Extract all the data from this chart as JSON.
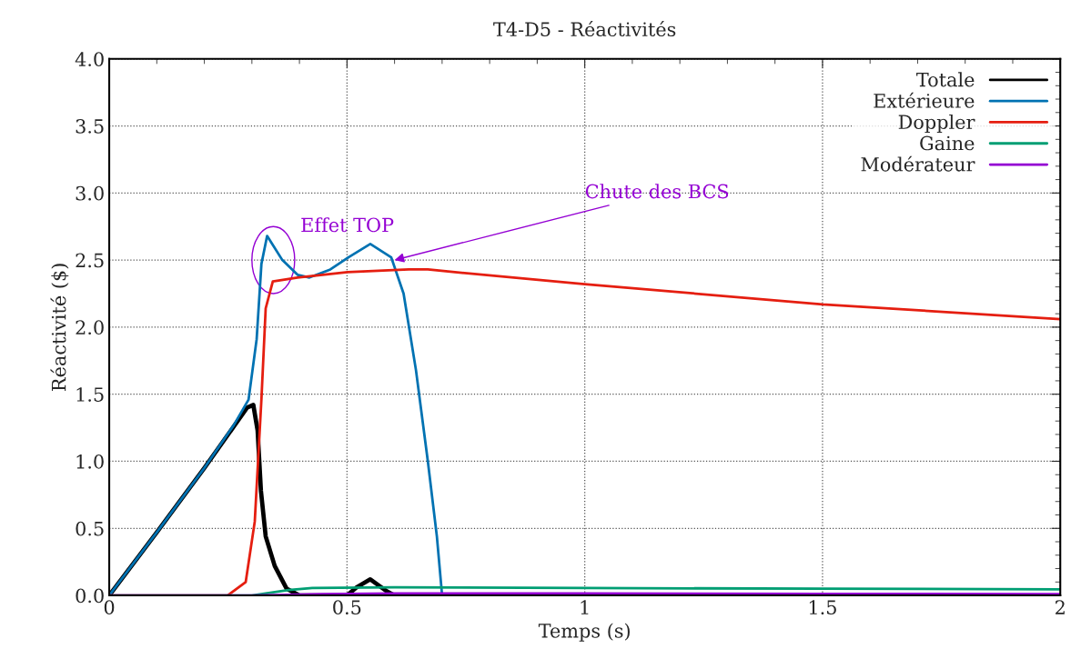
{
  "chart_data": {
    "type": "line",
    "title": "T4-D5 - Réactivités",
    "xlabel": "Temps (s)",
    "ylabel": "Réactivité ($)",
    "xlim": [
      0,
      2
    ],
    "xticks": [
      0,
      0.5,
      1,
      1.5,
      2
    ],
    "ylim": [
      0,
      4
    ],
    "yticks": [
      {
        "value": 0,
        "label": "0.0"
      },
      {
        "value": 0.5,
        "label": "0.5"
      },
      {
        "value": 1,
        "label": "1.0"
      },
      {
        "value": 1.5,
        "label": "1.5"
      },
      {
        "value": 2,
        "label": "2.0"
      },
      {
        "value": 2.5,
        "label": "2.5"
      },
      {
        "value": 3,
        "label": "3.0"
      },
      {
        "value": 3.5,
        "label": "3.5"
      },
      {
        "value": 4,
        "label": "4.0"
      }
    ],
    "grid": true,
    "legend": "top right",
    "line_style": "solid",
    "marker": "none",
    "series": [
      {
        "name": "Totale",
        "color": "#000000",
        "x": [
          0,
          0.1,
          0.2,
          0.262,
          0.29,
          0.303,
          0.312,
          0.319,
          0.329,
          0.348,
          0.373,
          0.4,
          0.5,
          0.52,
          0.549,
          0.584,
          0.6
        ],
        "values": [
          0,
          0.47,
          0.95,
          1.26,
          1.4,
          1.42,
          1.23,
          0.78,
          0.44,
          0.22,
          0.05,
          0,
          0,
          0.06,
          0.12,
          0.03,
          0
        ]
      },
      {
        "name": "Extérieure",
        "color": "#0072b2",
        "x": [
          0,
          0.1,
          0.2,
          0.262,
          0.293,
          0.31,
          0.32,
          0.332,
          0.364,
          0.396,
          0.421,
          0.465,
          0.503,
          0.549,
          0.593,
          0.619,
          0.645,
          0.67,
          0.689,
          0.7
        ],
        "values": [
          0,
          0.47,
          0.95,
          1.27,
          1.46,
          1.91,
          2.47,
          2.68,
          2.5,
          2.39,
          2.37,
          2.43,
          2.52,
          2.62,
          2.52,
          2.25,
          1.68,
          1.0,
          0.44,
          0
        ]
      },
      {
        "name": "Doppler",
        "color": "#e51e10",
        "x": [
          0,
          0.249,
          0.287,
          0.306,
          0.32,
          0.329,
          0.344,
          0.396,
          0.501,
          0.63,
          0.67,
          0.727,
          1.0,
          1.5,
          2.0
        ],
        "values": [
          0,
          0,
          0.1,
          0.55,
          1.46,
          2.14,
          2.34,
          2.37,
          2.41,
          2.43,
          2.43,
          2.41,
          2.32,
          2.17,
          2.06
        ]
      },
      {
        "name": "Gaine",
        "color": "#009e73",
        "x": [
          0,
          0.3,
          0.377,
          0.427,
          0.6,
          1.0,
          1.5,
          2.0
        ],
        "values": [
          0,
          0,
          0.04,
          0.055,
          0.06,
          0.055,
          0.05,
          0.045
        ]
      },
      {
        "name": "Modérateur",
        "color": "#9400d3",
        "x": [
          0,
          0.3,
          0.45,
          0.6,
          1.0,
          1.5,
          2.0
        ],
        "values": [
          0,
          0,
          0.01,
          0.015,
          0.015,
          0.012,
          0.01
        ]
      }
    ],
    "annotations": [
      {
        "text": "Effet TOP",
        "x": 0.332,
        "y": 2.68
      },
      {
        "text": "Chute des BCS",
        "x": 0.6,
        "y": 2.5
      }
    ]
  }
}
